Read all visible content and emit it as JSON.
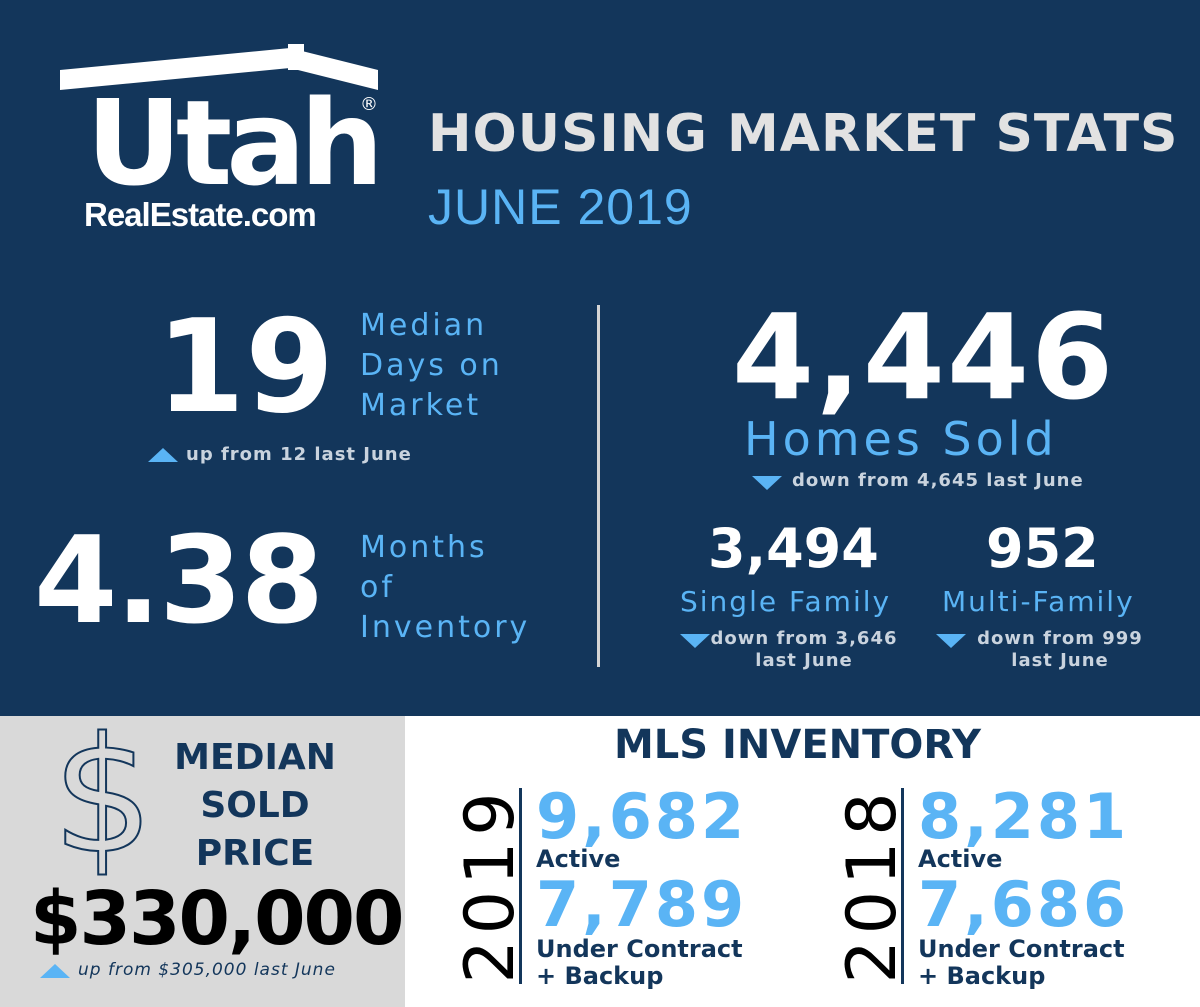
{
  "logo": {
    "word": "Utah",
    "registered": "®",
    "sub": "RealEstate.com"
  },
  "header": {
    "title": "HOUSING MARKET STATS",
    "period": "JUNE 2019"
  },
  "days_on_market": {
    "value": "19",
    "label_lines": [
      "Median",
      "Days on",
      "Market"
    ],
    "note": "up from 12 last June",
    "trend": "up"
  },
  "inventory_months": {
    "value": "4.38",
    "label_lines": [
      "Months",
      "of",
      "Inventory"
    ]
  },
  "homes_sold": {
    "value": "4,446",
    "label": "Homes Sold",
    "note": "down from 4,645 last June",
    "trend": "down"
  },
  "single_family": {
    "value": "3,494",
    "label": "Single Family",
    "note_lines": [
      "down from 3,646",
      "last June"
    ],
    "trend": "down"
  },
  "multi_family": {
    "value": "952",
    "label": "Multi-Family",
    "note_lines": [
      "down from 999",
      "last June"
    ],
    "trend": "down"
  },
  "median_price": {
    "icon": "dollar-icon",
    "symbol": "$",
    "label_lines": [
      "MEDIAN",
      "SOLD",
      "PRICE"
    ],
    "value": "$330,000",
    "note": "up from $305,000 last June",
    "trend": "up"
  },
  "mls": {
    "title": "MLS INVENTORY",
    "years": [
      {
        "year": "2019",
        "active": "9,682",
        "active_label": "Active",
        "contract": "7,789",
        "contract_label_lines": [
          "Under Contract",
          "+ Backup"
        ]
      },
      {
        "year": "2018",
        "active": "8,281",
        "active_label": "Active",
        "contract": "7,686",
        "contract_label_lines": [
          "Under Contract",
          "+ Backup"
        ]
      }
    ]
  },
  "colors": {
    "navy": "#13365b",
    "accent_blue": "#5ab4f5",
    "panel_gray": "#d9d9d9"
  }
}
